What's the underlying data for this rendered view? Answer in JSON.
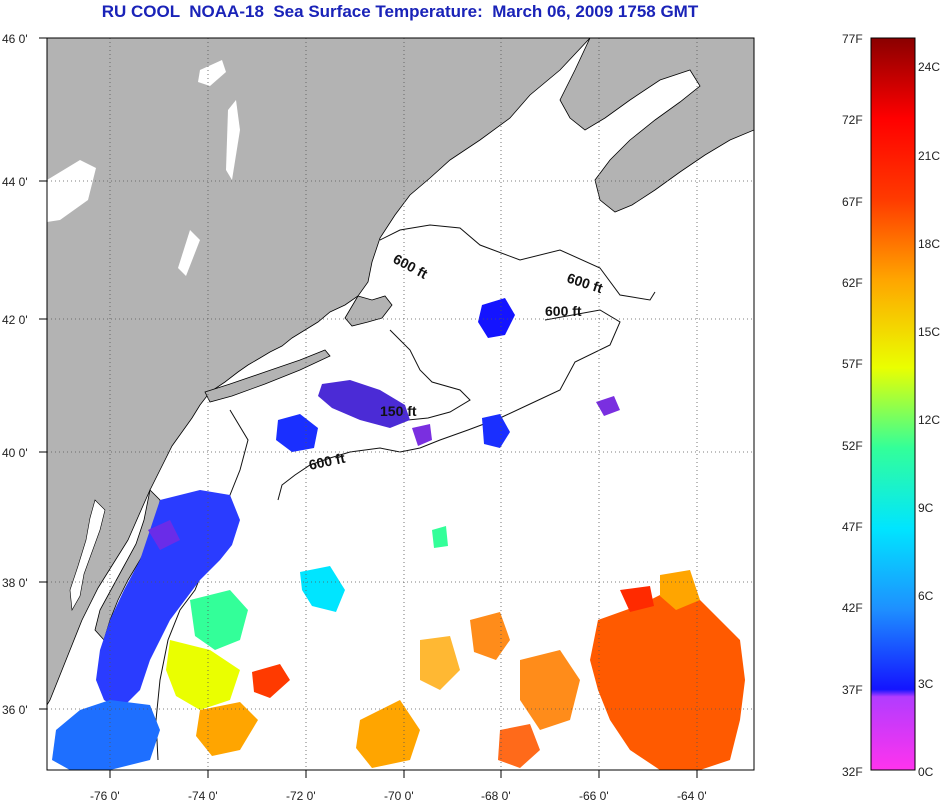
{
  "title": "RU COOL  NOAA-18  Sea Surface Temperature:  March 06, 2009 1758 GMT",
  "map": {
    "lon_ticks": [
      "-76 0'",
      "-74 0'",
      "-72 0'",
      "-70 0'",
      "-68 0'",
      "-66 0'",
      "-64 0'"
    ],
    "lat_ticks": [
      "46 0'",
      "44 0'",
      "42 0'",
      "40 0'",
      "38 0'",
      "36 0'"
    ],
    "lon_range": [
      -77,
      -63
    ],
    "lat_range": [
      35,
      46
    ],
    "grid": "dotted",
    "land_color": "#b3b3b3",
    "ocean_color": "#ffffff",
    "contour_labels": [
      "600 ft",
      "600 ft",
      "600 ft",
      "150 ft",
      "600 ft"
    ]
  },
  "colorbar": {
    "fahrenheit_labels": [
      "77F",
      "72F",
      "67F",
      "62F",
      "57F",
      "52F",
      "47F",
      "42F",
      "37F",
      "32F"
    ],
    "celsius_labels": [
      "24C",
      "21C",
      "18C",
      "15C",
      "12C",
      "9C",
      "6C",
      "3C",
      "0C"
    ],
    "colors": [
      "#ff33ee",
      "#b23cff",
      "#1414ff",
      "#1e90ff",
      "#00e5ff",
      "#33ff99",
      "#eaff00",
      "#ffa500",
      "#ff3a00",
      "#ff0000",
      "#8a0000"
    ]
  }
}
